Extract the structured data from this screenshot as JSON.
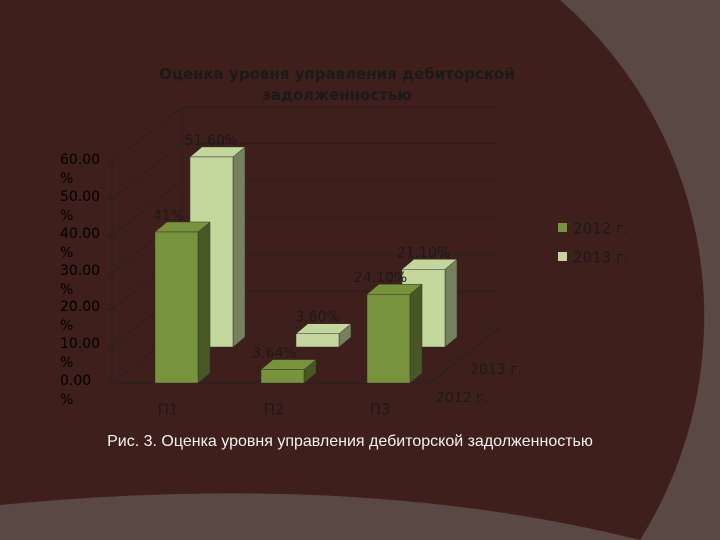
{
  "chart_data": {
    "type": "bar3d",
    "title": "Оценка уровня управления дебиторской задолженностью",
    "categories": [
      "П1",
      "П2",
      "П3"
    ],
    "series": [
      {
        "name": "2012 г.",
        "color": "#77933c",
        "values": [
          41,
          3.64,
          24.1
        ],
        "value_labels": [
          "41%",
          "3.64%",
          "24.10%"
        ]
      },
      {
        "name": "2013 г.",
        "color": "#c3d69b",
        "values": [
          51.6,
          3.6,
          21.1
        ],
        "value_labels": [
          "51.60%",
          "3.60%",
          "21.10%"
        ]
      }
    ],
    "ylim": [
      0,
      60
    ],
    "yticks": [
      {
        "value": 0,
        "label": "0.00 %"
      },
      {
        "value": 10,
        "label": "10.00 %"
      },
      {
        "value": 20,
        "label": "20.00 %"
      },
      {
        "value": 30,
        "label": "30.00 %"
      },
      {
        "value": 40,
        "label": "40.00 %"
      },
      {
        "value": 50,
        "label": "50.00 %"
      },
      {
        "value": 60,
        "label": "60.00 %"
      }
    ],
    "grid": true,
    "legend": "right"
  },
  "caption": "Рис. 3. Оценка уровня управления дебиторской задолженностью"
}
